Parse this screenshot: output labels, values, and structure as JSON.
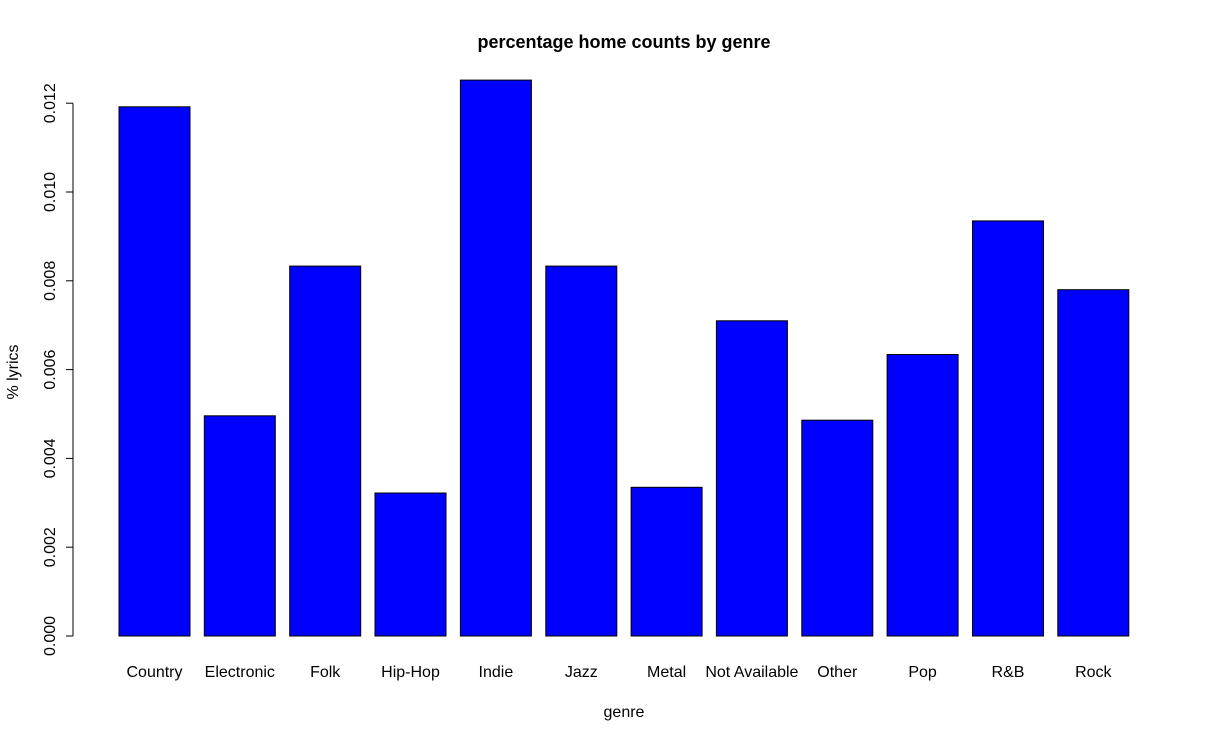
{
  "chart_data": {
    "type": "bar",
    "title": "percentage home counts by genre",
    "xlabel": "genre",
    "ylabel": "% lyrics",
    "categories": [
      "Country",
      "Electronic",
      "Folk",
      "Hip-Hop",
      "Indie",
      "Jazz",
      "Metal",
      "Not Available",
      "Other",
      "Pop",
      "R&B",
      "Rock"
    ],
    "values": [
      0.01192,
      0.00496,
      0.00833,
      0.00322,
      0.01252,
      0.00833,
      0.00335,
      0.0071,
      0.00486,
      0.00634,
      0.00935,
      0.0078
    ],
    "ylim": [
      0,
      0.012
    ],
    "yticks": [
      "0.000",
      "0.002",
      "0.004",
      "0.006",
      "0.008",
      "0.010",
      "0.012"
    ],
    "ytick_values": [
      0,
      0.002,
      0.004,
      0.006,
      0.008,
      0.01,
      0.012
    ],
    "grid": false,
    "bar_color": "#0000ff",
    "bar_outline": "#000000"
  }
}
